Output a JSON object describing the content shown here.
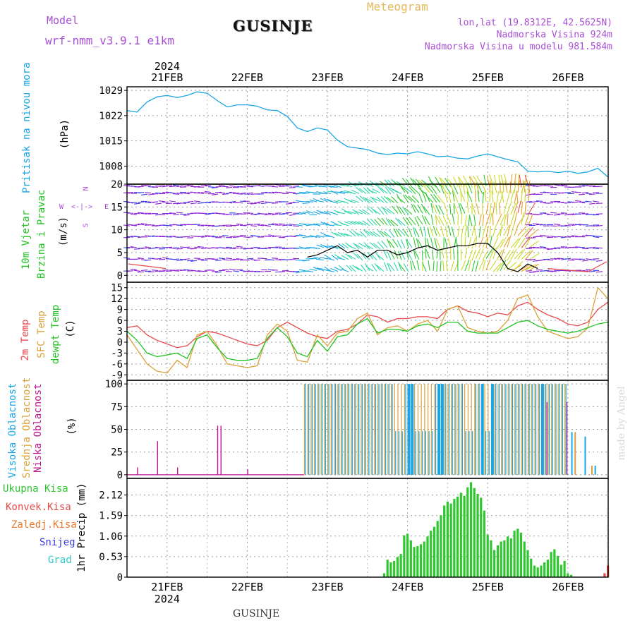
{
  "header": {
    "model_label": "Model",
    "model_name": "wrf-nmm_v3.9.1  e1km",
    "station": "GUSINJE",
    "chart_kind": "Meteogram",
    "lonlat": "lon,lat (19.8312E, 42.5625N)",
    "altitude": "Nadmorska Visina 924m",
    "model_altitude": "Nadmorska Visina u modelu 981.584m",
    "footer_station": "GUSINJE",
    "watermark": "made by Angel"
  },
  "dates": {
    "year": "2024",
    "labels": [
      "21FEB",
      "22FEB",
      "23FEB",
      "24FEB",
      "25FEB",
      "26FEB"
    ]
  },
  "colors": {
    "pressure": "#1aa6e6",
    "temp2m": "#e84a4a",
    "sfc": "#d9a23a",
    "dew": "#22c322",
    "high": "#1aa6e6",
    "mid": "#d9a23a",
    "low": "#c0168f",
    "precip": "#2ec82e",
    "frame": "#000000",
    "grid": "#999999"
  },
  "chart_data": [
    {
      "type": "line",
      "panel": "pressure",
      "ylabel": [
        "Pritisak na nivou mora",
        "(hPa)"
      ],
      "yticks": [
        1008,
        1015,
        1022,
        1029
      ],
      "ylim": [
        1003,
        1030
      ],
      "x": [
        "20FEB 12",
        "20FEB 15",
        "20FEB 18",
        "20FEB 21",
        "21FEB 00",
        "21FEB 03",
        "21FEB 06",
        "21FEB 09",
        "21FEB 12",
        "21FEB 15",
        "21FEB 18",
        "21FEB 21",
        "22FEB 00",
        "22FEB 03",
        "22FEB 06",
        "22FEB 09",
        "22FEB 12",
        "22FEB 15",
        "22FEB 18",
        "22FEB 21",
        "23FEB 00",
        "23FEB 03",
        "23FEB 06",
        "23FEB 09",
        "23FEB 12",
        "23FEB 15",
        "23FEB 18",
        "23FEB 21",
        "24FEB 00",
        "24FEB 03",
        "24FEB 06",
        "24FEB 09",
        "24FEB 12",
        "24FEB 15",
        "24FEB 18",
        "24FEB 21",
        "25FEB 00",
        "25FEB 03",
        "25FEB 06",
        "25FEB 09",
        "25FEB 12",
        "25FEB 15",
        "25FEB 18",
        "25FEB 21",
        "26FEB 00",
        "26FEB 03",
        "26FEB 06",
        "26FEB 09",
        "26FEB 12"
      ],
      "series": [
        {
          "values": [
            1023.4,
            1023.0,
            1025.8,
            1027.2,
            1027.6,
            1027.0,
            1027.6,
            1028.6,
            1028.2,
            1026.2,
            1024.4,
            1025.0,
            1025.0,
            1024.6,
            1023.6,
            1023.4,
            1021.8,
            1018.6,
            1017.6,
            1018.6,
            1018.0,
            1015.2,
            1013.4,
            1013.0,
            1012.6,
            1011.6,
            1011.2,
            1011.6,
            1011.4,
            1012.0,
            1011.4,
            1010.6,
            1010.8,
            1010.2,
            1010.0,
            1010.8,
            1011.4,
            1010.6,
            1009.8,
            1009.2,
            1006.6,
            1006.4,
            1006.6,
            1006.2,
            1006.6,
            1006.0,
            1006.4,
            1007.4,
            1005.0
          ]
        }
      ]
    },
    {
      "type": "line",
      "panel": "wind",
      "ylabel": [
        "10m Vjetar",
        "Brzina i Pravac",
        "(m/s)"
      ],
      "compass": {
        "n": "N",
        "s": "S",
        "e": "E",
        "w": "W",
        "arrows": "<-|->"
      },
      "yticks": [
        0,
        5,
        10,
        15,
        20
      ],
      "ylim": [
        -1.5,
        20
      ],
      "x": [
        "22FEB 18",
        "22FEB 21",
        "23FEB 00",
        "23FEB 03",
        "23FEB 06",
        "23FEB 09",
        "23FEB 12",
        "23FEB 15",
        "23FEB 18",
        "23FEB 21",
        "24FEB 00",
        "24FEB 03",
        "24FEB 06",
        "24FEB 09",
        "24FEB 12",
        "24FEB 15",
        "24FEB 18",
        "24FEB 21",
        "25FEB 00",
        "25FEB 03",
        "25FEB 06",
        "25FEB 09",
        "25FEB 12",
        "25FEB 15"
      ],
      "series": [
        {
          "values": [
            4.0,
            4.5,
            5.5,
            6.5,
            5.0,
            5.5,
            4.0,
            5.5,
            5.5,
            4.5,
            5.0,
            6.0,
            6.5,
            5.5,
            6.0,
            6.5,
            6.5,
            7.0,
            7.0,
            5.0,
            1.5,
            0.8,
            2.5,
            1.5
          ]
        }
      ],
      "arrow_rows": [
        19.5,
        18.0,
        16.0,
        13.5,
        11.0,
        8.5,
        6.0,
        3.5,
        1.0
      ],
      "arrow_color_stops": [
        "#8a1fd6",
        "#3a3ae8",
        "#1aa6e6",
        "#2fd6a8",
        "#2ec82e",
        "#c9d92a",
        "#e8a02a",
        "#e84a4a"
      ]
    },
    {
      "type": "line",
      "panel": "temperature",
      "ylabel": [
        "2m Temp",
        "SFC Temp",
        "dewpt Temp",
        "(C)"
      ],
      "yticks": [
        -9,
        -6,
        -3,
        0,
        3,
        6,
        9,
        12,
        15
      ],
      "ylim": [
        -10.5,
        16.5
      ],
      "x": [
        "20FEB 12",
        "20FEB 15",
        "20FEB 18",
        "20FEB 21",
        "21FEB 00",
        "21FEB 03",
        "21FEB 06",
        "21FEB 09",
        "21FEB 12",
        "21FEB 15",
        "21FEB 18",
        "21FEB 21",
        "22FEB 00",
        "22FEB 03",
        "22FEB 06",
        "22FEB 09",
        "22FEB 12",
        "22FEB 15",
        "22FEB 18",
        "22FEB 21",
        "23FEB 00",
        "23FEB 03",
        "23FEB 06",
        "23FEB 09",
        "23FEB 12",
        "23FEB 15",
        "23FEB 18",
        "23FEB 21",
        "24FEB 00",
        "24FEB 03",
        "24FEB 06",
        "24FEB 09",
        "24FEB 12",
        "24FEB 15",
        "24FEB 18",
        "24FEB 21",
        "25FEB 00",
        "25FEB 03",
        "25FEB 06",
        "25FEB 09",
        "25FEB 12",
        "25FEB 15",
        "25FEB 18",
        "25FEB 21",
        "26FEB 00",
        "26FEB 03",
        "26FEB 06",
        "26FEB 09",
        "26FEB 12"
      ],
      "series": [
        {
          "name": "2m Temp",
          "values": [
            4.0,
            4.5,
            2.0,
            0.5,
            -0.5,
            -1.5,
            -1.0,
            1.5,
            3.0,
            2.5,
            1.5,
            0.5,
            -0.5,
            -1.0,
            0.5,
            4.0,
            5.5,
            4.0,
            2.5,
            1.5,
            1.0,
            3.0,
            3.5,
            5.0,
            7.5,
            7.0,
            5.5,
            6.5,
            6.5,
            7.0,
            7.0,
            6.5,
            9.0,
            10.0,
            8.5,
            8.0,
            7.0,
            8.0,
            7.5,
            10.0,
            11.0,
            9.0,
            7.5,
            6.5,
            5.0,
            4.5,
            5.5,
            9.0,
            11.0
          ]
        },
        {
          "name": "SFC Temp",
          "values": [
            2.0,
            -2.0,
            -6.0,
            -8.0,
            -8.5,
            -5.0,
            -7.0,
            2.0,
            3.0,
            -1.0,
            -6.0,
            -6.5,
            -7.0,
            -6.5,
            2.0,
            5.0,
            3.0,
            -5.0,
            -5.5,
            2.0,
            -1.0,
            2.5,
            3.0,
            6.5,
            8.0,
            2.0,
            4.0,
            4.5,
            3.0,
            5.0,
            6.0,
            3.0,
            9.0,
            10.0,
            4.0,
            3.0,
            2.5,
            3.0,
            6.0,
            12.0,
            13.0,
            7.0,
            3.0,
            2.0,
            1.0,
            1.5,
            4.0,
            15.0,
            12.0
          ]
        },
        {
          "name": "dewpt Temp",
          "values": [
            3.0,
            0.5,
            -3.0,
            -4.0,
            -3.5,
            -3.0,
            -4.5,
            1.0,
            2.0,
            -1.5,
            -4.5,
            -5.0,
            -5.0,
            -4.5,
            1.0,
            4.0,
            1.5,
            -3.0,
            -4.0,
            0.5,
            -2.5,
            1.5,
            2.0,
            5.0,
            6.5,
            2.5,
            3.5,
            3.5,
            3.0,
            4.5,
            5.0,
            4.0,
            5.5,
            5.5,
            3.0,
            2.5,
            2.5,
            2.5,
            4.0,
            5.5,
            6.0,
            4.5,
            3.5,
            3.0,
            2.5,
            3.0,
            4.0,
            5.0,
            5.5
          ]
        }
      ]
    },
    {
      "type": "bar",
      "panel": "clouds",
      "ylabel": [
        "Visoka Oblacnost",
        "Srednja Oblacnost",
        "Niska Oblacnost",
        "(%)"
      ],
      "yticks": [
        0,
        25,
        50,
        75,
        100
      ],
      "ylim": [
        -4,
        104
      ],
      "low_spikes": [
        {
          "x": "20FEB 15",
          "v": 8
        },
        {
          "x": "20FEB 21",
          "v": 37
        },
        {
          "x": "21FEB 03",
          "v": 8
        },
        {
          "x": "21FEB 15",
          "v": 54
        },
        {
          "x": "21FEB 16",
          "v": 54
        },
        {
          "x": "22FEB 00",
          "v": 6
        }
      ],
      "overcast_from": "22FEB 17",
      "overcast_to": "26FEB 00",
      "overcast_pct": 100,
      "high_gaps": [
        {
          "x": "23FEB 21",
          "v": 50
        },
        {
          "x": "24FEB 03",
          "v": 40
        },
        {
          "x": "24FEB 06",
          "v": 45
        },
        {
          "x": "24FEB 18",
          "v": 50
        },
        {
          "x": "25FEB 00",
          "v": 47
        }
      ],
      "tail_pct": [
        {
          "x": "26FEB 01",
          "v": 47
        },
        {
          "x": "26FEB 02",
          "v": 47
        },
        {
          "x": "26FEB 05",
          "v": 42
        },
        {
          "x": "26FEB 07",
          "v": 10
        },
        {
          "x": "26FEB 08",
          "v": 10
        }
      ]
    },
    {
      "type": "bar",
      "panel": "precipitation",
      "ylabel": [
        "1hr Precip (mm)"
      ],
      "legend": [
        "Ukupna Kisa",
        "Konvek.Kisa",
        "Zaledj.Kisa",
        "Snijeg",
        "Grad"
      ],
      "legend_colors": [
        "#2ec82e",
        "#e84a4a",
        "#e87a2a",
        "#3a3ae8",
        "#2fc6c6"
      ],
      "yticks": [
        "0",
        "0.53",
        "1.06",
        "1.59",
        "2.12"
      ],
      "ylim": [
        0,
        2.55
      ],
      "x": [
        "23FEB 17",
        "23FEB 18",
        "23FEB 19",
        "23FEB 20",
        "23FEB 21",
        "23FEB 22",
        "23FEB 23",
        "24FEB 00",
        "24FEB 01",
        "24FEB 02",
        "24FEB 03",
        "24FEB 04",
        "24FEB 05",
        "24FEB 06",
        "24FEB 07",
        "24FEB 08",
        "24FEB 09",
        "24FEB 10",
        "24FEB 11",
        "24FEB 12",
        "24FEB 13",
        "24FEB 14",
        "24FEB 15",
        "24FEB 16",
        "24FEB 17",
        "24FEB 18",
        "24FEB 19",
        "24FEB 20",
        "24FEB 21",
        "24FEB 22",
        "24FEB 23",
        "25FEB 00",
        "25FEB 01",
        "25FEB 02",
        "25FEB 03",
        "25FEB 04",
        "25FEB 05",
        "25FEB 06",
        "25FEB 07",
        "25FEB 08",
        "25FEB 09",
        "25FEB 10",
        "25FEB 11",
        "25FEB 12",
        "25FEB 13",
        "25FEB 14",
        "25FEB 15",
        "25FEB 16",
        "25FEB 17",
        "25FEB 18",
        "25FEB 19",
        "25FEB 20",
        "25FEB 21",
        "25FEB 22",
        "25FEB 23",
        "26FEB 00",
        "26FEB 01",
        "26FEB 02",
        "26FEB 03",
        "26FEB 04",
        "26FEB 05",
        "26FEB 06",
        "26FEB 07",
        "26FEB 08",
        "26FEB 09",
        "26FEB 10",
        "26FEB 11",
        "26FEB 12"
      ],
      "series": [
        {
          "name": "Ukupna Kisa",
          "values": [
            0.1,
            0.45,
            0.38,
            0.42,
            0.52,
            0.6,
            1.08,
            1.12,
            0.95,
            0.78,
            0.8,
            0.85,
            0.92,
            1.05,
            1.2,
            1.3,
            1.45,
            1.6,
            1.85,
            1.95,
            1.9,
            2.02,
            2.08,
            2.18,
            2.1,
            2.32,
            2.45,
            2.3,
            2.15,
            2.05,
            1.72,
            1.1,
            0.95,
            0.7,
            0.82,
            0.92,
            0.95,
            1.05,
            1.0,
            1.2,
            1.25,
            1.15,
            0.92,
            0.7,
            0.48,
            0.3,
            0.25,
            0.3,
            0.38,
            0.45,
            0.65,
            0.72,
            0.55,
            0.32,
            0.42,
            0.1,
            0.06,
            0.0,
            0.0,
            0.0,
            0.0,
            0.0,
            0.0,
            0.0,
            0.0,
            0.0,
            0.0,
            0.15
          ]
        },
        {
          "name": "Konvek.Kisa",
          "values": [
            0.0,
            0.0,
            0.0,
            0.0,
            0.0,
            0.0,
            0.0,
            0.0,
            0.0,
            0.0,
            0.0,
            0.0,
            0.0,
            0.0,
            0.0,
            0.0,
            0.0,
            0.0,
            0.0,
            0.0,
            0.0,
            0.0,
            0.0,
            0.0,
            0.0,
            0.0,
            0.0,
            0.0,
            0.0,
            0.0,
            0.0,
            0.0,
            0.0,
            0.0,
            0.0,
            0.0,
            0.0,
            0.0,
            0.0,
            0.0,
            0.0,
            0.0,
            0.0,
            0.0,
            0.0,
            0.0,
            0.0,
            0.0,
            0.0,
            0.0,
            0.0,
            0.0,
            0.0,
            0.0,
            0.0,
            0.0,
            0.0,
            0.0,
            0.0,
            0.0,
            0.0,
            0.0,
            0.0,
            0.0,
            0.0,
            0.0,
            0.1,
            0.3
          ]
        }
      ]
    }
  ]
}
